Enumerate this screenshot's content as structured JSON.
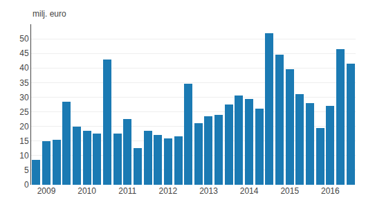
{
  "chart_data": {
    "type": "bar",
    "ylabel": "milj. euro",
    "categories": [
      null,
      "2009",
      null,
      null,
      null,
      "2010",
      null,
      null,
      null,
      "2011",
      null,
      null,
      null,
      "2012",
      null,
      null,
      null,
      "2013",
      null,
      null,
      null,
      "2014",
      null,
      null,
      null,
      "2015",
      null,
      null,
      null,
      "2016",
      null,
      null
    ],
    "values": [
      8.5,
      15.0,
      15.5,
      28.5,
      20.0,
      18.5,
      17.5,
      43.0,
      17.5,
      22.5,
      12.5,
      18.5,
      17.0,
      16.0,
      16.5,
      34.5,
      21.0,
      23.5,
      24.0,
      27.5,
      30.5,
      29.5,
      26.0,
      52.0,
      44.5,
      39.5,
      31.0,
      28.0,
      19.5,
      27.0,
      46.5,
      41.5
    ],
    "color": "#1b7ab3",
    "ylim": [
      0,
      55
    ],
    "yticks": [
      0,
      5,
      10,
      15,
      20,
      25,
      30,
      35,
      40,
      45,
      50
    ],
    "grid": true
  }
}
